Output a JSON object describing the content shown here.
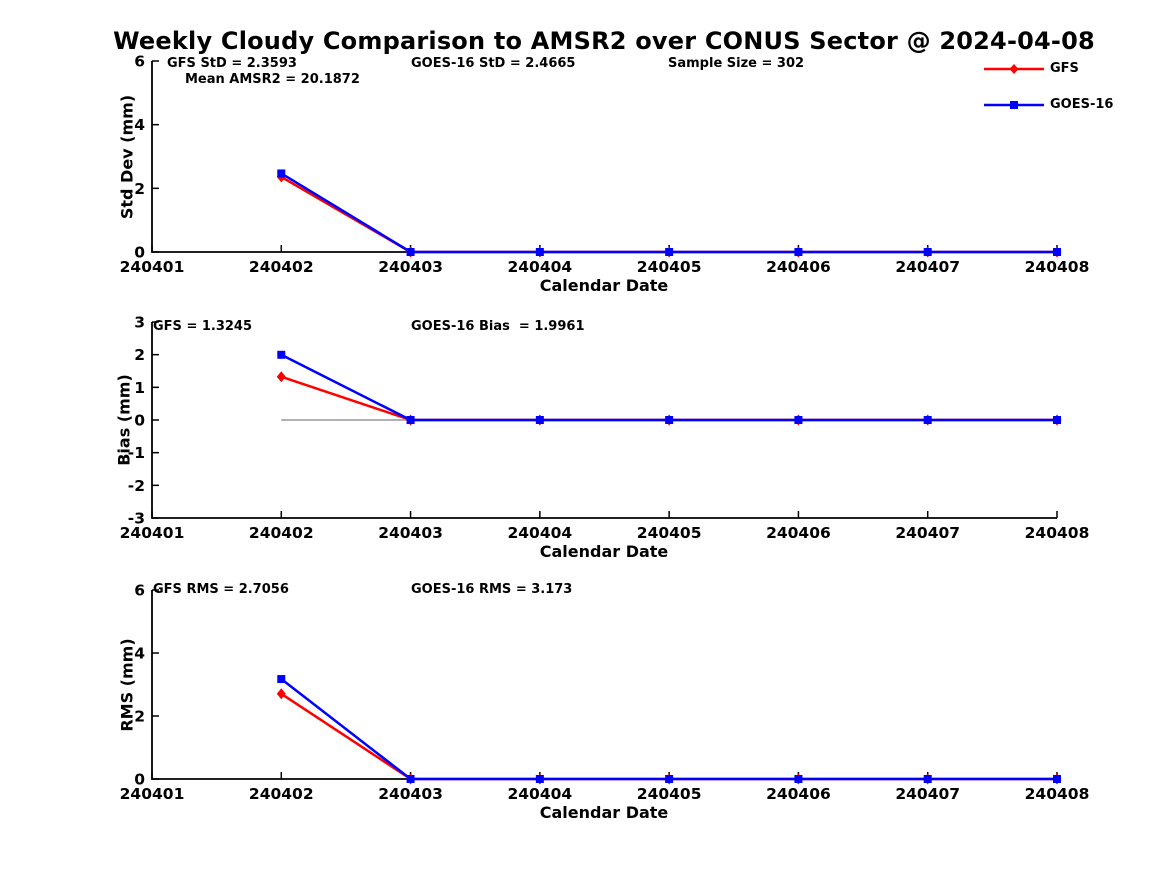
{
  "title": "Weekly Cloudy Comparison to AMSR2 over CONUS Sector @ 2024-04-08",
  "colors": {
    "gfs": "#ff0000",
    "goes16": "#0000ff",
    "refline": "#808080",
    "axis": "#000000"
  },
  "legend": {
    "position": "top-right",
    "entries": [
      {
        "label": "GFS",
        "series": "gfs",
        "marker": "diamond"
      },
      {
        "label": "GOES-16",
        "series": "goes16",
        "marker": "square"
      }
    ]
  },
  "chart_data": [
    {
      "type": "line",
      "ylabel": "Std Dev (mm)",
      "xlabel": "Calendar Date",
      "ylim": [
        0,
        6
      ],
      "y_ticks": [
        0,
        2,
        4,
        6
      ],
      "x_ticks": [
        "240401",
        "240402",
        "240403",
        "240404",
        "240405",
        "240406",
        "240407",
        "240408"
      ],
      "annotations": [
        {
          "text": "GFS StD = 2.3593"
        },
        {
          "text": "Mean AMSR2 = 20.1872"
        },
        {
          "text": "GOES-16 StD = 2.4665"
        },
        {
          "text": "Sample Size = 302"
        }
      ],
      "series": [
        {
          "name": "GFS",
          "color_key": "gfs",
          "marker": "diamond",
          "x": [
            "240402",
            "240403",
            "240404",
            "240405",
            "240406",
            "240407",
            "240408"
          ],
          "values": [
            2.3593,
            0,
            0,
            0,
            0,
            0,
            0
          ]
        },
        {
          "name": "GOES-16",
          "color_key": "goes16",
          "marker": "square",
          "x": [
            "240402",
            "240403",
            "240404",
            "240405",
            "240406",
            "240407",
            "240408"
          ],
          "values": [
            2.4665,
            0,
            0,
            0,
            0,
            0,
            0
          ]
        }
      ]
    },
    {
      "type": "line",
      "ylabel": "Bias (mm)",
      "xlabel": "Calendar Date",
      "ylim": [
        -3,
        3
      ],
      "y_ticks": [
        -3,
        -2,
        -1,
        0,
        1,
        2,
        3
      ],
      "x_ticks": [
        "240401",
        "240402",
        "240403",
        "240404",
        "240405",
        "240406",
        "240407",
        "240408"
      ],
      "zero_line": {
        "from": "240402",
        "to": "240408",
        "y": 0
      },
      "annotations": [
        {
          "text": "GFS = 1.3245"
        },
        {
          "text": "GOES-16 Bias  = 1.9961"
        }
      ],
      "series": [
        {
          "name": "GFS",
          "color_key": "gfs",
          "marker": "diamond",
          "x": [
            "240402",
            "240403",
            "240404",
            "240405",
            "240406",
            "240407",
            "240408"
          ],
          "values": [
            1.3245,
            0,
            0,
            0,
            0,
            0,
            0
          ]
        },
        {
          "name": "GOES-16",
          "color_key": "goes16",
          "marker": "square",
          "x": [
            "240402",
            "240403",
            "240404",
            "240405",
            "240406",
            "240407",
            "240408"
          ],
          "values": [
            1.9961,
            0,
            0,
            0,
            0,
            0,
            0
          ]
        }
      ]
    },
    {
      "type": "line",
      "ylabel": "RMS (mm)",
      "xlabel": "Calendar Date",
      "ylim": [
        0,
        6
      ],
      "y_ticks": [
        0,
        2,
        4,
        6
      ],
      "x_ticks": [
        "240401",
        "240402",
        "240403",
        "240404",
        "240405",
        "240406",
        "240407",
        "240408"
      ],
      "annotations": [
        {
          "text": "GFS RMS = 2.7056"
        },
        {
          "text": "GOES-16 RMS = 3.173"
        }
      ],
      "series": [
        {
          "name": "GFS",
          "color_key": "gfs",
          "marker": "diamond",
          "x": [
            "240402",
            "240403",
            "240404",
            "240405",
            "240406",
            "240407",
            "240408"
          ],
          "values": [
            2.7056,
            0,
            0,
            0,
            0,
            0,
            0
          ]
        },
        {
          "name": "GOES-16",
          "color_key": "goes16",
          "marker": "square",
          "x": [
            "240402",
            "240403",
            "240404",
            "240405",
            "240406",
            "240407",
            "240408"
          ],
          "values": [
            3.173,
            0,
            0,
            0,
            0,
            0,
            0
          ]
        }
      ]
    }
  ]
}
